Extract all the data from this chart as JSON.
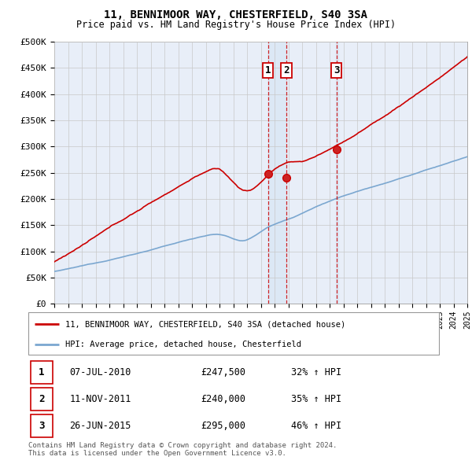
{
  "title1": "11, BENNIMOOR WAY, CHESTERFIELD, S40 3SA",
  "title2": "Price paid vs. HM Land Registry's House Price Index (HPI)",
  "ylabel_ticks": [
    "£0",
    "£50K",
    "£100K",
    "£150K",
    "£200K",
    "£250K",
    "£300K",
    "£350K",
    "£400K",
    "£450K",
    "£500K"
  ],
  "ytick_vals": [
    0,
    50000,
    100000,
    150000,
    200000,
    250000,
    300000,
    350000,
    400000,
    450000,
    500000
  ],
  "x_start_year": 1995,
  "x_end_year": 2025,
  "sale_dates": [
    2010.52,
    2011.87,
    2015.49
  ],
  "sale_prices": [
    247500,
    240000,
    295000
  ],
  "sale_labels": [
    "1",
    "2",
    "3"
  ],
  "legend_line1": "11, BENNIMOOR WAY, CHESTERFIELD, S40 3SA (detached house)",
  "legend_line2": "HPI: Average price, detached house, Chesterfield",
  "table_rows": [
    [
      "1",
      "07-JUL-2010",
      "£247,500",
      "32% ↑ HPI"
    ],
    [
      "2",
      "11-NOV-2011",
      "£240,000",
      "35% ↑ HPI"
    ],
    [
      "3",
      "26-JUN-2015",
      "£295,000",
      "46% ↑ HPI"
    ]
  ],
  "footer": "Contains HM Land Registry data © Crown copyright and database right 2024.\nThis data is licensed under the Open Government Licence v3.0.",
  "line_color_red": "#cc0000",
  "line_color_blue": "#7ba7d0",
  "shade_color": "#dce8f5",
  "background_color": "#e8eef8",
  "grid_color": "#c8c8c8"
}
